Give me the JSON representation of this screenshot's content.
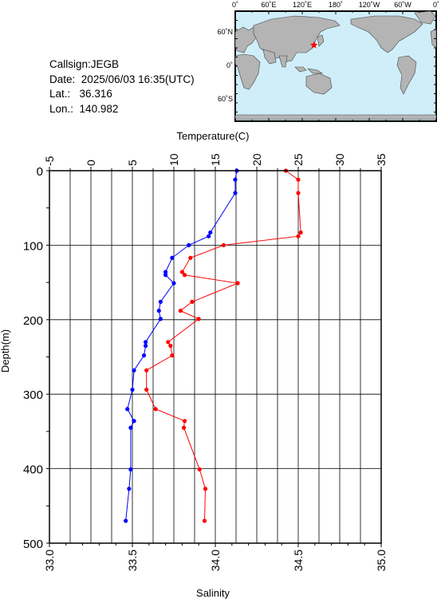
{
  "station": {
    "callsign_label": "Callsign:",
    "callsign": "JEGB",
    "date_label": "Date:",
    "date": "2025/06/03 16:35(UTC)",
    "lat_label": "Lat.:",
    "lat": "36.316",
    "lon_label": "Lon.:",
    "lon": "140.982"
  },
  "map": {
    "top_labels": [
      "0˚",
      "60˚E",
      "120˚E",
      "180˚",
      "120˚W",
      "60˚W",
      "0˚"
    ],
    "left_labels": [
      "60˚N",
      "0˚",
      "60˚S"
    ],
    "ocean_color": "#cfeefa",
    "land_color": "#b4b4b4",
    "marker_color": "#ff0000",
    "marker_lon": 140.982,
    "marker_lat": 36.316
  },
  "chart_data": {
    "type": "line",
    "title": "",
    "ylabel": "Depth(m)",
    "ylim": [
      0,
      500
    ],
    "y_inverted": true,
    "y_ticks": [
      "0",
      "100",
      "200",
      "300",
      "400",
      "500"
    ],
    "top_axis": {
      "label": "Temperature(C)",
      "range": [
        -5,
        35
      ],
      "ticks": [
        "-5",
        "0",
        "5",
        "10",
        "15",
        "20",
        "25",
        "30",
        "35"
      ]
    },
    "bottom_axis": {
      "label": "Salinity",
      "range": [
        33.0,
        35.0
      ],
      "ticks": [
        "33.0",
        "33.5",
        "34.0",
        "34.5",
        "35.0"
      ]
    },
    "grid": true,
    "series": [
      {
        "axis": "top",
        "color": "#ff0000",
        "points": [
          [
            23.5,
            0
          ],
          [
            25.0,
            12
          ],
          [
            25.0,
            30
          ],
          [
            25.3,
            83
          ],
          [
            25.0,
            88
          ],
          [
            16.0,
            100
          ],
          [
            12.0,
            117
          ],
          [
            11.0,
            136
          ],
          [
            11.3,
            140
          ],
          [
            17.7,
            151
          ],
          [
            12.2,
            176
          ],
          [
            10.8,
            188
          ],
          [
            13.0,
            199
          ],
          [
            9.3,
            230
          ],
          [
            9.6,
            235
          ],
          [
            9.8,
            248
          ],
          [
            6.7,
            268
          ],
          [
            6.7,
            294
          ],
          [
            7.8,
            320
          ],
          [
            11.3,
            336
          ],
          [
            11.2,
            345
          ],
          [
            13.1,
            401
          ],
          [
            13.8,
            427
          ],
          [
            13.7,
            470
          ]
        ]
      },
      {
        "axis": "bottom",
        "color": "#0000ff",
        "points": [
          [
            34.13,
            0
          ],
          [
            34.12,
            12
          ],
          [
            34.12,
            30
          ],
          [
            33.97,
            83
          ],
          [
            33.96,
            88
          ],
          [
            33.84,
            100
          ],
          [
            33.74,
            117
          ],
          [
            33.7,
            136
          ],
          [
            33.7,
            140
          ],
          [
            33.75,
            151
          ],
          [
            33.67,
            176
          ],
          [
            33.66,
            188
          ],
          [
            33.67,
            199
          ],
          [
            33.58,
            230
          ],
          [
            33.58,
            235
          ],
          [
            33.57,
            248
          ],
          [
            33.51,
            268
          ],
          [
            33.5,
            294
          ],
          [
            33.47,
            320
          ],
          [
            33.51,
            336
          ],
          [
            33.49,
            345
          ],
          [
            33.49,
            401
          ],
          [
            33.48,
            427
          ],
          [
            33.46,
            470
          ]
        ]
      }
    ]
  }
}
